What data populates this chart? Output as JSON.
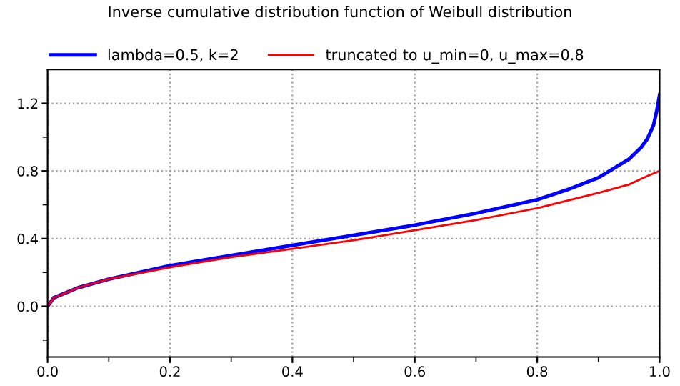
{
  "chart_data": {
    "type": "line",
    "title": "Inverse cumulative distribution function of Weibull distribution",
    "series": [
      {
        "name": "lambda=0.5, k=2",
        "color": "#0000ff",
        "x": [
          0,
          0.01,
          0.05,
          0.1,
          0.2,
          0.3,
          0.4,
          0.5,
          0.6,
          0.7,
          0.8,
          0.85,
          0.9,
          0.95,
          0.97,
          0.98,
          0.99,
          0.995,
          1.0
        ],
        "values": [
          0,
          0.05,
          0.11,
          0.16,
          0.24,
          0.3,
          0.36,
          0.42,
          0.48,
          0.55,
          0.63,
          0.69,
          0.76,
          0.87,
          0.94,
          0.99,
          1.07,
          1.15,
          1.25
        ]
      },
      {
        "name": "truncated to u_min=0, u_max=0.8",
        "color": "#ff0000",
        "x": [
          0,
          0.01,
          0.05,
          0.1,
          0.2,
          0.3,
          0.4,
          0.5,
          0.6,
          0.7,
          0.8,
          0.9,
          0.95,
          0.98,
          1.0
        ],
        "values": [
          0,
          0.05,
          0.11,
          0.16,
          0.23,
          0.29,
          0.34,
          0.39,
          0.45,
          0.51,
          0.58,
          0.67,
          0.72,
          0.77,
          0.8
        ]
      }
    ],
    "xlim": [
      0,
      1
    ],
    "ylim": [
      -0.3,
      1.4
    ],
    "xticks": [
      {
        "value": 0,
        "label": "0.0"
      },
      {
        "value": 0.1,
        "label": null
      },
      {
        "value": 0.2,
        "label": "0.2"
      },
      {
        "value": 0.3,
        "label": null
      },
      {
        "value": 0.4,
        "label": "0.4"
      },
      {
        "value": 0.5,
        "label": null
      },
      {
        "value": 0.6,
        "label": "0.6"
      },
      {
        "value": 0.7,
        "label": null
      },
      {
        "value": 0.8,
        "label": "0.8"
      },
      {
        "value": 0.9,
        "label": null
      },
      {
        "value": 1.0,
        "label": "1.0"
      }
    ],
    "yticks": [
      {
        "value": -0.2,
        "label": null
      },
      {
        "value": 0.0,
        "label": "0.0"
      },
      {
        "value": 0.2,
        "label": null
      },
      {
        "value": 0.4,
        "label": "0.4"
      },
      {
        "value": 0.6,
        "label": null
      },
      {
        "value": 0.8,
        "label": "0.8"
      },
      {
        "value": 1.0,
        "label": null
      },
      {
        "value": 1.2,
        "label": "1.2"
      }
    ],
    "grid": true,
    "legend": "top left",
    "line_style": "solid",
    "marker": "none"
  }
}
